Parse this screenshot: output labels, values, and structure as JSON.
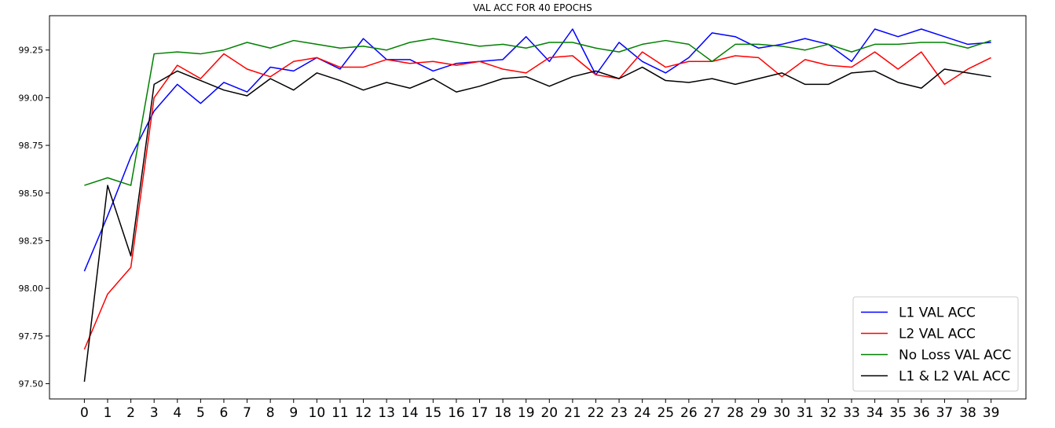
{
  "chart_data": {
    "type": "line",
    "title": "VAL ACC FOR 40 EPOCHS",
    "xlabel": "",
    "ylabel": "",
    "x": [
      0,
      1,
      2,
      3,
      4,
      5,
      6,
      7,
      8,
      9,
      10,
      11,
      12,
      13,
      14,
      15,
      16,
      17,
      18,
      19,
      20,
      21,
      22,
      23,
      24,
      25,
      26,
      27,
      28,
      29,
      30,
      31,
      32,
      33,
      34,
      35,
      36,
      37,
      38,
      39
    ],
    "xticks": [
      "0",
      "1",
      "2",
      "3",
      "4",
      "5",
      "6",
      "7",
      "8",
      "9",
      "10",
      "11",
      "12",
      "13",
      "14",
      "15",
      "16",
      "17",
      "18",
      "19",
      "20",
      "21",
      "22",
      "23",
      "24",
      "25",
      "26",
      "27",
      "28",
      "29",
      "30",
      "31",
      "32",
      "33",
      "34",
      "35",
      "36",
      "37",
      "38",
      "39"
    ],
    "yticks": [
      "97.50",
      "97.75",
      "98.00",
      "98.25",
      "98.50",
      "98.75",
      "99.00",
      "99.25"
    ],
    "ytick_values": [
      97.5,
      97.75,
      98.0,
      98.25,
      98.5,
      98.75,
      99.0,
      99.25
    ],
    "xlim": [
      -1.5,
      40.5
    ],
    "ylim": [
      97.42,
      99.43
    ],
    "grid": false,
    "legend_position": "bottom-right",
    "series": [
      {
        "name": "L1 VAL ACC",
        "color": "#0000ff",
        "values": [
          98.09,
          98.38,
          98.69,
          98.93,
          99.07,
          98.97,
          99.08,
          99.03,
          99.16,
          99.14,
          99.21,
          99.15,
          99.31,
          99.2,
          99.2,
          99.14,
          99.18,
          99.19,
          99.2,
          99.32,
          99.19,
          99.36,
          99.12,
          99.29,
          99.19,
          99.13,
          99.21,
          99.34,
          99.32,
          99.26,
          99.28,
          99.31,
          99.28,
          99.19,
          99.36,
          99.32,
          99.36,
          99.32,
          99.28,
          99.29
        ]
      },
      {
        "name": "L2 VAL ACC",
        "color": "#ff0000",
        "values": [
          97.68,
          97.97,
          98.11,
          99.0,
          99.17,
          99.1,
          99.23,
          99.15,
          99.11,
          99.19,
          99.21,
          99.16,
          99.16,
          99.2,
          99.18,
          99.19,
          99.17,
          99.19,
          99.15,
          99.13,
          99.21,
          99.22,
          99.12,
          99.1,
          99.24,
          99.16,
          99.19,
          99.19,
          99.22,
          99.21,
          99.11,
          99.2,
          99.17,
          99.16,
          99.24,
          99.15,
          99.24,
          99.07,
          99.15,
          99.21
        ]
      },
      {
        "name": "No Loss VAL ACC",
        "color": "#008000",
        "values": [
          98.54,
          98.58,
          98.54,
          99.23,
          99.24,
          99.23,
          99.25,
          99.29,
          99.26,
          99.3,
          99.28,
          99.26,
          99.27,
          99.25,
          99.29,
          99.31,
          99.29,
          99.27,
          99.28,
          99.26,
          99.29,
          99.29,
          99.26,
          99.24,
          99.28,
          99.3,
          99.28,
          99.19,
          99.28,
          99.28,
          99.27,
          99.25,
          99.28,
          99.24,
          99.28,
          99.28,
          99.29,
          99.29,
          99.26,
          99.3
        ]
      },
      {
        "name": "L1 & L2 VAL ACC",
        "color": "#000000",
        "values": [
          97.51,
          98.54,
          98.17,
          99.07,
          99.14,
          99.09,
          99.04,
          99.01,
          99.1,
          99.04,
          99.13,
          99.09,
          99.04,
          99.08,
          99.05,
          99.1,
          99.03,
          99.06,
          99.1,
          99.11,
          99.06,
          99.11,
          99.14,
          99.1,
          99.16,
          99.09,
          99.08,
          99.1,
          99.07,
          99.1,
          99.13,
          99.07,
          99.07,
          99.13,
          99.14,
          99.08,
          99.05,
          99.15,
          99.13,
          99.11
        ]
      }
    ]
  }
}
